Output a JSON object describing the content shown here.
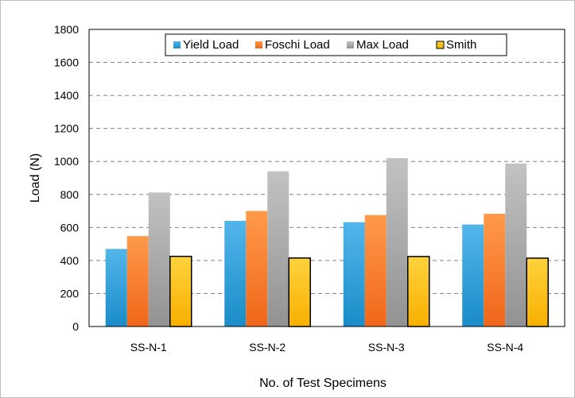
{
  "chart_data": {
    "type": "bar",
    "title": "",
    "xlabel": "No. of Test Specimens",
    "ylabel": "Load (N)",
    "categories": [
      "SS-N-1",
      "SS-N-2",
      "SS-N-3",
      "SS-N-4"
    ],
    "ylim": [
      0,
      1800
    ],
    "yticks": [
      0,
      200,
      400,
      600,
      800,
      1000,
      1200,
      1400,
      1600,
      1800
    ],
    "grid": true,
    "legend_position": "top",
    "series": [
      {
        "name": "Yield Load",
        "color": "#2f9fd8",
        "values": [
          470,
          640,
          632,
          618
        ]
      },
      {
        "name": "Foschi Load",
        "color": "#f97a2a",
        "values": [
          548,
          700,
          675,
          683
        ]
      },
      {
        "name": "Max Load",
        "color": "#a8a8a8",
        "values": [
          812,
          940,
          1020,
          988
        ]
      },
      {
        "name": "Smith",
        "color": "#fdbe16",
        "values": [
          425,
          415,
          424,
          414
        ]
      }
    ]
  }
}
